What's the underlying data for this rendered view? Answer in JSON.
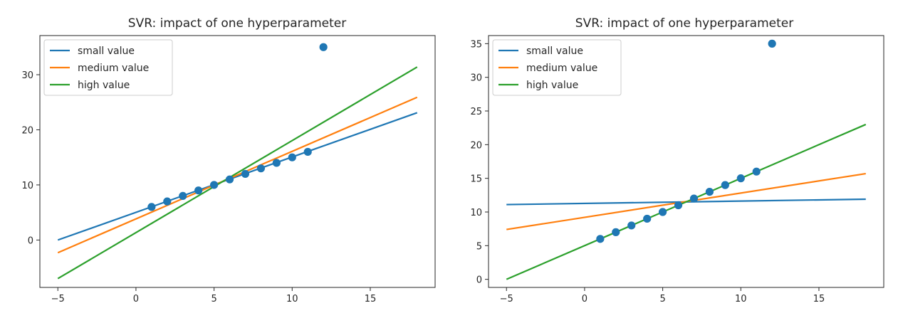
{
  "chart_data": [
    {
      "type": "line",
      "title": "SVR: impact of one hyperparameter",
      "xlabel": "",
      "ylabel": "",
      "xlim": [
        -6.15,
        19.15
      ],
      "ylim": [
        -8.6,
        37.1
      ],
      "xticks": [
        -5,
        0,
        5,
        10,
        15
      ],
      "yticks": [
        0,
        10,
        20,
        30
      ],
      "grid": false,
      "legend_position": "top-left",
      "series": [
        {
          "name": "small value",
          "color": "#1f77b4",
          "x": [
            -5,
            18
          ],
          "y": [
            0.0,
            23.1
          ]
        },
        {
          "name": "medium value",
          "color": "#ff7f0e",
          "x": [
            -5,
            18
          ],
          "y": [
            -2.3,
            25.9
          ]
        },
        {
          "name": "high value",
          "color": "#2ca02c",
          "x": [
            -5,
            18
          ],
          "y": [
            -7.0,
            31.4
          ]
        }
      ],
      "scatter": {
        "color": "#1f77b4",
        "x": [
          1,
          2,
          3,
          4,
          5,
          6,
          7,
          8,
          9,
          10,
          11,
          12
        ],
        "y": [
          6,
          7,
          8,
          9,
          10,
          11,
          12,
          13,
          14,
          15,
          16,
          35
        ]
      }
    },
    {
      "type": "line",
      "title": "SVR: impact of one hyperparameter",
      "xlabel": "",
      "ylabel": "",
      "xlim": [
        -6.15,
        19.15
      ],
      "ylim": [
        -1.2,
        36.2
      ],
      "xticks": [
        -5,
        0,
        5,
        10,
        15
      ],
      "yticks": [
        0,
        5,
        10,
        15,
        20,
        25,
        30,
        35
      ],
      "grid": false,
      "legend_position": "top-left",
      "series": [
        {
          "name": "small value",
          "color": "#1f77b4",
          "x": [
            -5,
            18
          ],
          "y": [
            11.1,
            11.9
          ]
        },
        {
          "name": "medium value",
          "color": "#ff7f0e",
          "x": [
            -5,
            18
          ],
          "y": [
            7.4,
            15.7
          ]
        },
        {
          "name": "high value",
          "color": "#2ca02c",
          "x": [
            -5,
            18
          ],
          "y": [
            0.0,
            23.0
          ]
        }
      ],
      "scatter": {
        "color": "#1f77b4",
        "x": [
          1,
          2,
          3,
          4,
          5,
          6,
          7,
          8,
          9,
          10,
          11,
          12
        ],
        "y": [
          6,
          7,
          8,
          9,
          10,
          11,
          12,
          13,
          14,
          15,
          16,
          35
        ]
      }
    }
  ]
}
